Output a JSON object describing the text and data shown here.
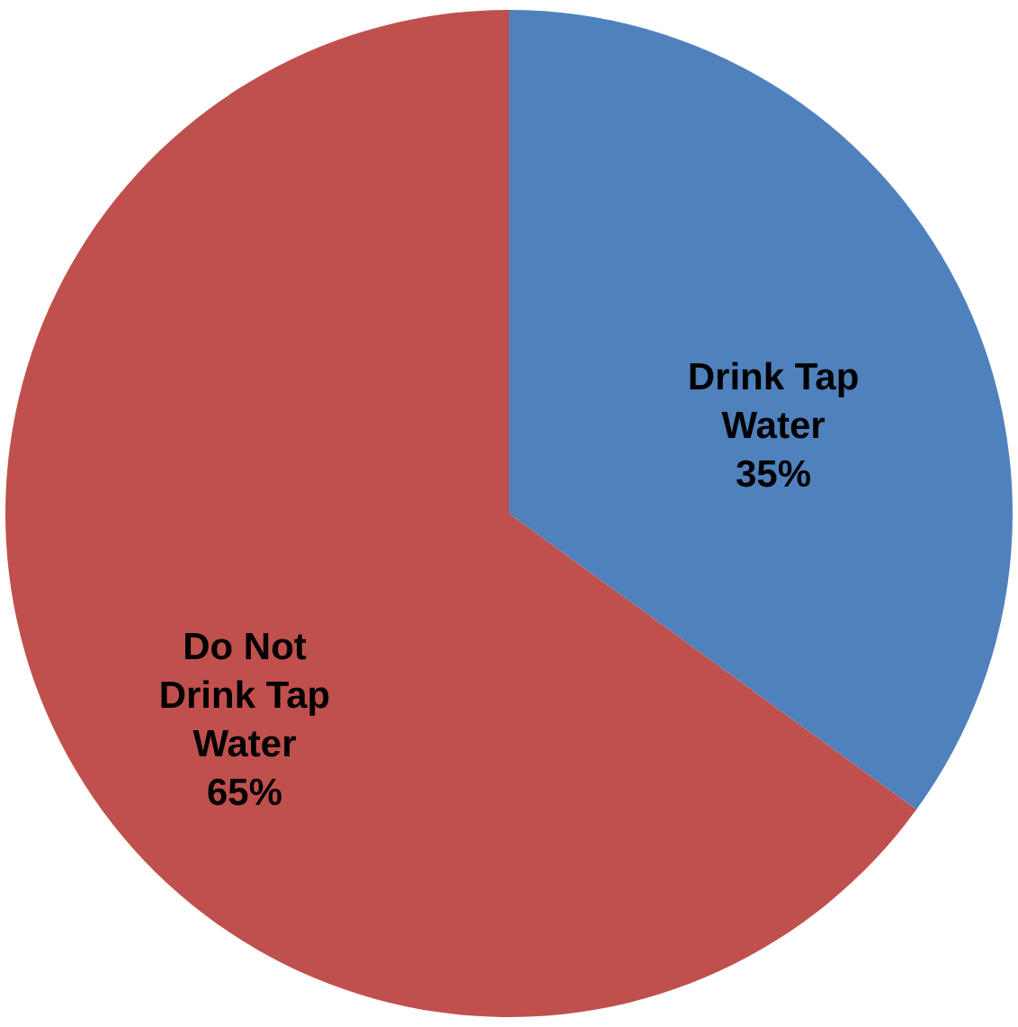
{
  "chart_data": {
    "type": "pie",
    "categories": [
      "Drink Tap Water",
      "Do Not Drink Tap Water"
    ],
    "values": [
      35,
      65
    ],
    "colors": [
      "#4f81bd",
      "#c0504d"
    ],
    "value_labels": [
      "35%",
      "65%"
    ],
    "legend": false
  }
}
